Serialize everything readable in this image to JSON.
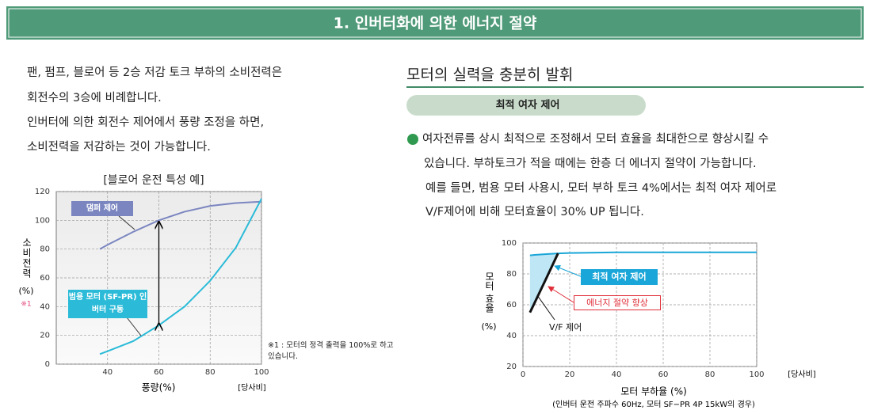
{
  "header": {
    "title": "1. 인버터화에 의한 에너지 절약"
  },
  "left": {
    "lines": [
      "팬, 펌프, 블로어 등 2승 저감 토크 부하의 소비전력은",
      "회전수의 3승에 비례합니다.",
      "인버터에 의한 회전수 제어에서 풍량 조정을 하면,",
      "소비전력을 저감하는 것이 가능합니다."
    ]
  },
  "right": {
    "heading": "모터의 실력을 충분히 발휘",
    "pill": "최적 여자 제어",
    "lines": [
      "여자전류를 상시 최적으로 조정해서 모터 효율을 최대한으로 향상시킬 수",
      "있습니다. 부하토크가 적을 때에는 한층 더 에너지 절약이 가능합니다.",
      "예를 들면, 범용 모터 사용시, 모터 부하 토크 4%에서는 최적 여자 제어로",
      "V/F제어에 비해 모터효율이 30% UP 됩니다."
    ]
  },
  "chart_data": [
    {
      "type": "line",
      "title": "[블로어 운전 특성 예]",
      "xlabel": "풍량(%)",
      "source": "[당사비]",
      "ylabel": "소비전력",
      "yunit": "(%)",
      "ynote": "※1",
      "note": "※1 : 모터의 정격 출력을 100%로 하고 있습니다.",
      "x": [
        37,
        40,
        50,
        60,
        70,
        80,
        90,
        100
      ],
      "series": [
        {
          "name": "댐퍼 제어",
          "color": "#7b86c0",
          "values": [
            80,
            83,
            92,
            100,
            106,
            110,
            112,
            113
          ]
        },
        {
          "name": "범용 모터 (SF-PR) 인버터 구동",
          "color": "#2bbbd8",
          "values": [
            7,
            9,
            16,
            27,
            40,
            58,
            81,
            115
          ]
        }
      ],
      "xlim": [
        20,
        100
      ],
      "xticks": [
        40,
        60,
        80,
        100
      ],
      "ylim": [
        0,
        120
      ],
      "yticks": [
        0,
        20,
        40,
        60,
        80,
        100,
        120
      ],
      "grid": true
    },
    {
      "type": "line",
      "xlabel": "모터 부하율 (%)",
      "caption": "(인버터 운전 주파수 60Hz, 모터 SF−PR 4P 15kW의 경우)",
      "source": "[당사비]",
      "ylabel": "모터 효율",
      "yunit": "(%)",
      "annotation": "에너지 절약 향상",
      "x": [
        3,
        5,
        10,
        15,
        20,
        40,
        60,
        80,
        100
      ],
      "series": [
        {
          "name": "최적 여자 제어",
          "color": "#1aa6d8",
          "values": [
            92,
            92.3,
            92.8,
            93.3,
            93.5,
            94,
            94,
            94,
            94
          ]
        },
        {
          "name": "V/F 제어",
          "color": "#111111",
          "values": [
            55,
            61.3,
            77.2,
            93.3,
            null,
            null,
            null,
            null,
            null
          ]
        }
      ],
      "xlim": [
        0,
        100
      ],
      "xticks": [
        0,
        20,
        40,
        60,
        80,
        100
      ],
      "ylim": [
        20,
        100
      ],
      "yticks": [
        20,
        40,
        60,
        80,
        100
      ],
      "grid": true
    }
  ]
}
